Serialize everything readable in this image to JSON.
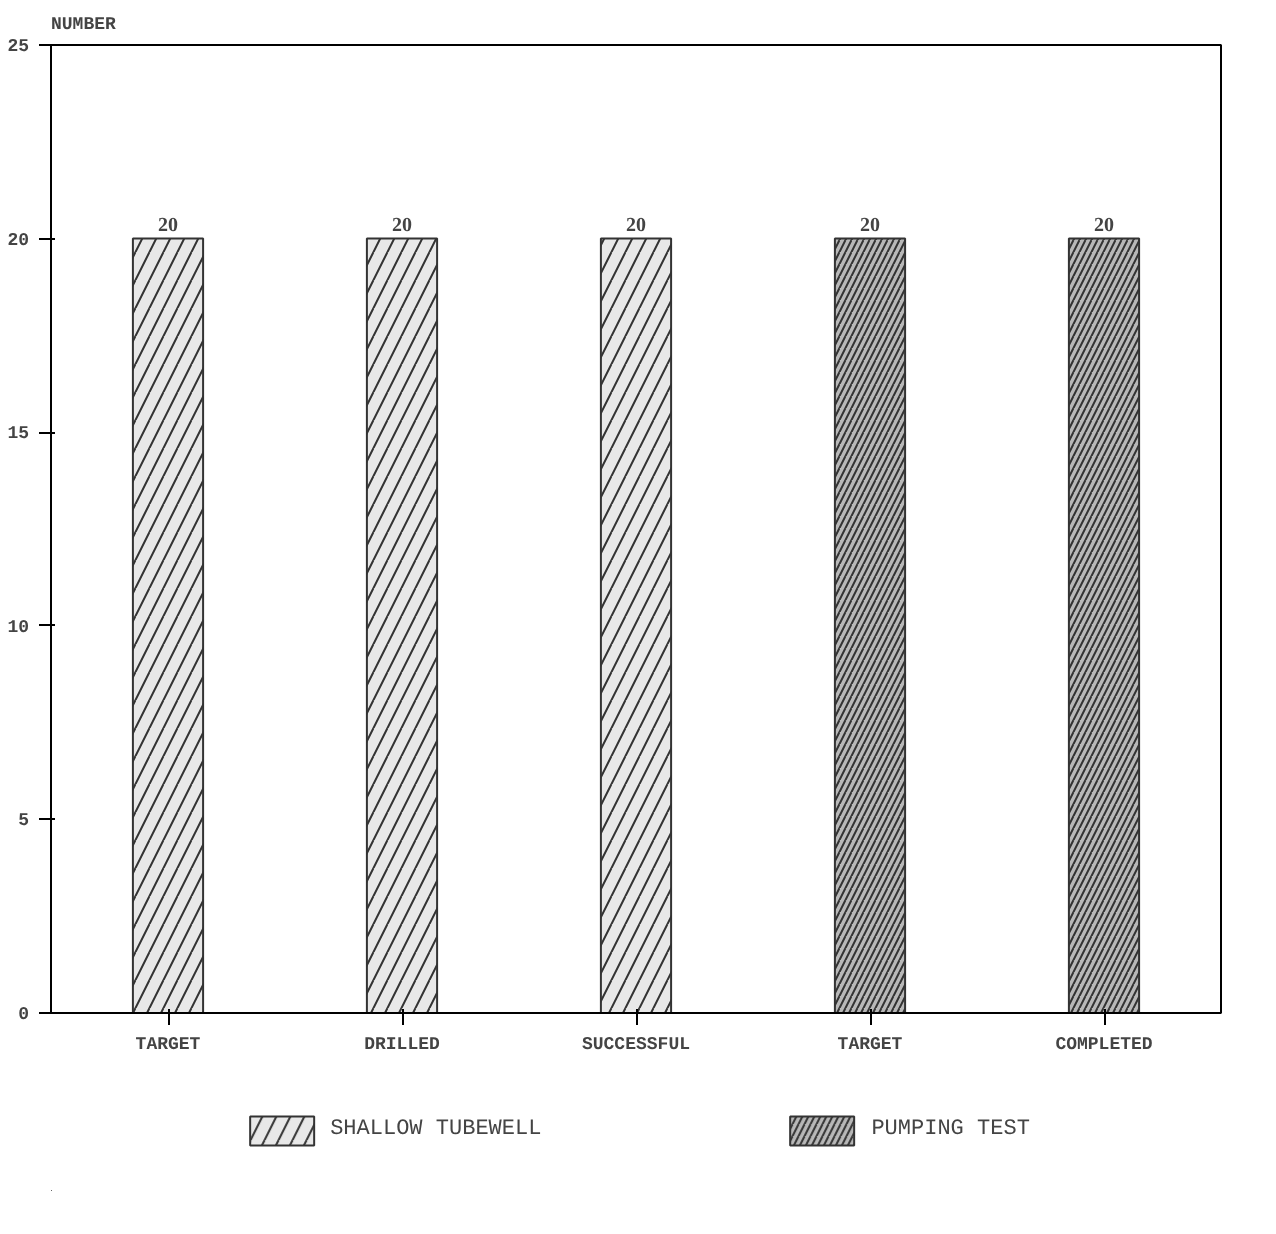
{
  "chart_data": {
    "type": "bar",
    "ylabel": "NUMBER",
    "categories": [
      "TARGET",
      "DRILLED",
      "SUCCESSFUL",
      "TARGET",
      "COMPLETED"
    ],
    "series": [
      {
        "name": "SHALLOW TUBEWELL",
        "color": "#e8e8e8",
        "values": [
          20,
          20,
          20,
          null,
          null
        ]
      },
      {
        "name": "PUMPING TEST",
        "color": "#b8b8b8",
        "values": [
          null,
          null,
          null,
          20,
          20
        ]
      }
    ],
    "ylim": [
      0,
      25
    ],
    "yticks": [
      0,
      5,
      10,
      15,
      20,
      25
    ],
    "data_labels": true,
    "grid": false,
    "legend": "bottom"
  }
}
